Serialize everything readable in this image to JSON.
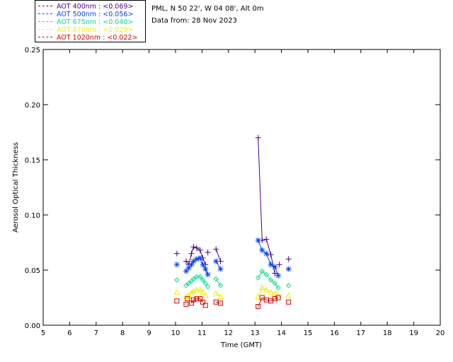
{
  "header": {
    "site_line": "PML, N 50 22', W 04 08', Alt 0m",
    "date_line": "Data from: 28 Nov 2023"
  },
  "legend": {
    "items": [
      {
        "label": "AOT  400nm : <0.069>",
        "color": "#4b0082"
      },
      {
        "label": "AOT  500nm : <0.056>",
        "color": "#0044ff"
      },
      {
        "label": "AOT  675nm : <0.040>",
        "color": "#00e090"
      },
      {
        "label": "AOT  870nm : <0.029>",
        "color": "#eeee00"
      },
      {
        "label": "AOT 1020nm : <0.022>",
        "color": "#dd0000"
      }
    ]
  },
  "chart_data": {
    "type": "scatter",
    "xlabel": "Time (GMT)",
    "ylabel": "Aerosol Optical Thickness",
    "xlim": [
      5,
      20
    ],
    "ylim": [
      0,
      0.25
    ],
    "xticks": [
      5,
      6,
      7,
      8,
      9,
      10,
      11,
      12,
      13,
      14,
      15,
      16,
      17,
      18,
      19,
      20
    ],
    "yticks": [
      "0.00",
      "0.05",
      "0.10",
      "0.15",
      "0.20",
      "0.25"
    ],
    "series": [
      {
        "name": "AOT  400nm : <0.069>",
        "color": "#4b0082",
        "marker": "plus",
        "points": [
          {
            "x": 10.05,
            "y": 0.065,
            "connect": false
          },
          {
            "x": 10.4,
            "y": 0.058,
            "connect": false
          },
          {
            "x": 10.5,
            "y": 0.055,
            "connect": true
          },
          {
            "x": 10.6,
            "y": 0.065,
            "connect": true
          },
          {
            "x": 10.68,
            "y": 0.071,
            "connect": true
          },
          {
            "x": 10.8,
            "y": 0.07,
            "connect": true
          },
          {
            "x": 10.93,
            "y": 0.068,
            "connect": true
          },
          {
            "x": 11.03,
            "y": 0.061,
            "connect": true
          },
          {
            "x": 11.13,
            "y": 0.055,
            "connect": true
          },
          {
            "x": 11.22,
            "y": 0.066,
            "connect": false
          },
          {
            "x": 11.53,
            "y": 0.069,
            "connect": false
          },
          {
            "x": 11.7,
            "y": 0.058,
            "connect": true
          },
          {
            "x": 13.12,
            "y": 0.17,
            "connect": false
          },
          {
            "x": 13.27,
            "y": 0.077,
            "connect": true
          },
          {
            "x": 13.43,
            "y": 0.078,
            "connect": true
          },
          {
            "x": 13.6,
            "y": 0.064,
            "connect": true
          },
          {
            "x": 13.75,
            "y": 0.047,
            "connect": true
          },
          {
            "x": 13.92,
            "y": 0.055,
            "connect": false
          },
          {
            "x": 14.27,
            "y": 0.06,
            "connect": false
          }
        ]
      },
      {
        "name": "AOT  500nm : <0.056>",
        "color": "#0044ff",
        "marker": "star",
        "points": [
          {
            "x": 10.05,
            "y": 0.055,
            "connect": false
          },
          {
            "x": 10.4,
            "y": 0.049,
            "connect": false
          },
          {
            "x": 10.5,
            "y": 0.052,
            "connect": true
          },
          {
            "x": 10.6,
            "y": 0.055,
            "connect": true
          },
          {
            "x": 10.68,
            "y": 0.058,
            "connect": true
          },
          {
            "x": 10.8,
            "y": 0.06,
            "connect": true
          },
          {
            "x": 10.93,
            "y": 0.061,
            "connect": true
          },
          {
            "x": 11.03,
            "y": 0.055,
            "connect": true
          },
          {
            "x": 11.13,
            "y": 0.051,
            "connect": true
          },
          {
            "x": 11.22,
            "y": 0.046,
            "connect": true
          },
          {
            "x": 11.53,
            "y": 0.058,
            "connect": false
          },
          {
            "x": 11.7,
            "y": 0.051,
            "connect": true
          },
          {
            "x": 13.12,
            "y": 0.077,
            "connect": false
          },
          {
            "x": 13.27,
            "y": 0.068,
            "connect": true
          },
          {
            "x": 13.43,
            "y": 0.065,
            "connect": true
          },
          {
            "x": 13.6,
            "y": 0.055,
            "connect": true
          },
          {
            "x": 13.75,
            "y": 0.053,
            "connect": true
          },
          {
            "x": 13.88,
            "y": 0.045,
            "connect": true
          },
          {
            "x": 14.27,
            "y": 0.051,
            "connect": false
          }
        ]
      },
      {
        "name": "AOT  675nm : <0.040>",
        "color": "#00e090",
        "marker": "diamond",
        "points": [
          {
            "x": 10.05,
            "y": 0.041,
            "connect": false
          },
          {
            "x": 10.4,
            "y": 0.036,
            "connect": false
          },
          {
            "x": 10.5,
            "y": 0.038,
            "connect": true
          },
          {
            "x": 10.6,
            "y": 0.04,
            "connect": true
          },
          {
            "x": 10.68,
            "y": 0.042,
            "connect": true
          },
          {
            "x": 10.8,
            "y": 0.044,
            "connect": true
          },
          {
            "x": 10.93,
            "y": 0.044,
            "connect": true
          },
          {
            "x": 11.03,
            "y": 0.041,
            "connect": true
          },
          {
            "x": 11.13,
            "y": 0.038,
            "connect": true
          },
          {
            "x": 11.22,
            "y": 0.035,
            "connect": false
          },
          {
            "x": 11.53,
            "y": 0.042,
            "connect": false
          },
          {
            "x": 11.7,
            "y": 0.036,
            "connect": true
          },
          {
            "x": 13.12,
            "y": 0.043,
            "connect": false
          },
          {
            "x": 13.27,
            "y": 0.049,
            "connect": true
          },
          {
            "x": 13.43,
            "y": 0.046,
            "connect": true
          },
          {
            "x": 13.6,
            "y": 0.041,
            "connect": true
          },
          {
            "x": 13.75,
            "y": 0.038,
            "connect": true
          },
          {
            "x": 13.88,
            "y": 0.034,
            "connect": true
          },
          {
            "x": 14.27,
            "y": 0.036,
            "connect": false
          }
        ]
      },
      {
        "name": "AOT  870nm : <0.029>",
        "color": "#eeee00",
        "marker": "triangle",
        "points": [
          {
            "x": 10.05,
            "y": 0.03,
            "connect": false
          },
          {
            "x": 10.4,
            "y": 0.026,
            "connect": false
          },
          {
            "x": 10.5,
            "y": 0.027,
            "connect": true
          },
          {
            "x": 10.6,
            "y": 0.029,
            "connect": true
          },
          {
            "x": 10.68,
            "y": 0.031,
            "connect": true
          },
          {
            "x": 10.8,
            "y": 0.032,
            "connect": true
          },
          {
            "x": 10.93,
            "y": 0.032,
            "connect": true
          },
          {
            "x": 11.03,
            "y": 0.03,
            "connect": true
          },
          {
            "x": 11.13,
            "y": 0.027,
            "connect": false
          },
          {
            "x": 11.53,
            "y": 0.029,
            "connect": false
          },
          {
            "x": 11.7,
            "y": 0.026,
            "connect": true
          },
          {
            "x": 13.12,
            "y": 0.026,
            "connect": false
          },
          {
            "x": 13.27,
            "y": 0.034,
            "connect": true
          },
          {
            "x": 13.43,
            "y": 0.032,
            "connect": true
          },
          {
            "x": 13.6,
            "y": 0.03,
            "connect": true
          },
          {
            "x": 13.75,
            "y": 0.029,
            "connect": true
          },
          {
            "x": 13.88,
            "y": 0.027,
            "connect": true
          },
          {
            "x": 14.27,
            "y": 0.027,
            "connect": false
          }
        ]
      },
      {
        "name": "AOT 1020nm : <0.022>",
        "color": "#dd0000",
        "marker": "square",
        "points": [
          {
            "x": 10.05,
            "y": 0.022,
            "connect": false
          },
          {
            "x": 10.4,
            "y": 0.019,
            "connect": false
          },
          {
            "x": 10.45,
            "y": 0.024,
            "connect": false
          },
          {
            "x": 10.6,
            "y": 0.02,
            "connect": false
          },
          {
            "x": 10.68,
            "y": 0.023,
            "connect": true
          },
          {
            "x": 10.8,
            "y": 0.024,
            "connect": true
          },
          {
            "x": 10.93,
            "y": 0.024,
            "connect": true
          },
          {
            "x": 11.03,
            "y": 0.021,
            "connect": true
          },
          {
            "x": 11.13,
            "y": 0.018,
            "connect": false
          },
          {
            "x": 11.53,
            "y": 0.021,
            "connect": false
          },
          {
            "x": 11.7,
            "y": 0.02,
            "connect": true
          },
          {
            "x": 13.12,
            "y": 0.017,
            "connect": false
          },
          {
            "x": 13.27,
            "y": 0.025,
            "connect": true
          },
          {
            "x": 13.43,
            "y": 0.023,
            "connect": true
          },
          {
            "x": 13.6,
            "y": 0.022,
            "connect": true
          },
          {
            "x": 13.75,
            "y": 0.024,
            "connect": true
          },
          {
            "x": 13.88,
            "y": 0.025,
            "connect": true
          },
          {
            "x": 14.27,
            "y": 0.021,
            "connect": false
          }
        ]
      }
    ]
  }
}
